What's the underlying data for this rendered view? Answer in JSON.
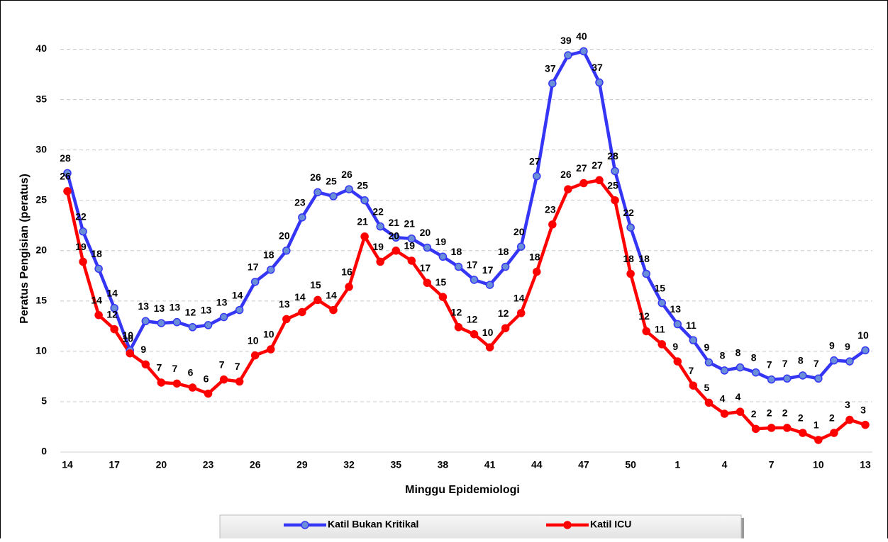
{
  "chart_data": {
    "type": "line",
    "x_label": "Minggu Epidemiologi",
    "y_label": "Peratus Pengisian (peratus)",
    "categories": [
      "14",
      null,
      null,
      "17",
      null,
      null,
      "20",
      null,
      null,
      "23",
      null,
      null,
      "26",
      null,
      null,
      "29",
      null,
      null,
      "32",
      null,
      null,
      "35",
      null,
      null,
      "38",
      null,
      null,
      "41",
      null,
      null,
      "44",
      null,
      null,
      "47",
      null,
      null,
      "50",
      null,
      null,
      "1",
      null,
      null,
      "4",
      null,
      null,
      "7",
      null,
      null,
      "10",
      null,
      null,
      "13"
    ],
    "series": [
      {
        "name": "Katil Bukan Kritikal",
        "color": "#3535f5",
        "marker_fill": "#6a8fd8",
        "values": [
          27.7,
          21.9,
          18.2,
          14.3,
          10.1,
          13.0,
          12.8,
          12.9,
          12.4,
          12.6,
          13.4,
          14.1,
          16.9,
          18.1,
          20.0,
          23.3,
          25.8,
          25.4,
          26.1,
          25.0,
          22.4,
          21.3,
          21.2,
          20.3,
          19.4,
          18.4,
          17.1,
          16.6,
          18.4,
          20.4,
          27.4,
          36.6,
          39.4,
          39.8,
          36.7,
          27.9,
          22.3,
          17.7,
          14.8,
          12.7,
          11.1,
          8.9,
          8.1,
          8.4,
          7.9,
          7.2,
          7.3,
          7.6,
          7.3,
          9.1,
          9.0,
          10.1
        ],
        "value_labels": [
          "28",
          "22",
          "18",
          "14",
          "10",
          "13",
          "13",
          "13",
          "12",
          "13",
          "13",
          "14",
          "17",
          "18",
          "20",
          "23",
          "26",
          "25",
          "26",
          "25",
          "22",
          "21",
          "21",
          "20",
          "19",
          "18",
          "17",
          "17",
          "18",
          "20",
          "27",
          "37",
          "39",
          "40",
          "37",
          "28",
          "22",
          "18",
          "15",
          "13",
          "11",
          "9",
          "8",
          "8",
          "8",
          "7",
          "7",
          "8",
          "7",
          "9",
          "9",
          "10"
        ]
      },
      {
        "name": "Katil ICU",
        "color": "#ff0000",
        "marker_fill": "#ff0000",
        "values": [
          25.9,
          18.9,
          13.6,
          12.2,
          9.8,
          8.7,
          6.9,
          6.8,
          6.4,
          5.8,
          7.2,
          7.0,
          9.6,
          10.2,
          13.2,
          13.9,
          15.1,
          14.1,
          16.4,
          21.4,
          18.9,
          20.0,
          19.0,
          16.8,
          15.4,
          12.4,
          11.7,
          10.4,
          12.3,
          13.8,
          17.9,
          22.6,
          26.1,
          26.7,
          27.0,
          25.0,
          17.7,
          12.0,
          10.7,
          9.0,
          6.6,
          4.9,
          3.8,
          4.0,
          2.3,
          2.4,
          2.4,
          1.9,
          1.2,
          1.9,
          3.2,
          2.7
        ],
        "value_labels": [
          "26",
          "19",
          "14",
          "12",
          "10",
          "9",
          "7",
          "7",
          "6",
          "6",
          "7",
          "7",
          "10",
          "10",
          "13",
          "14",
          "15",
          "14",
          "16",
          "21",
          "19",
          "20",
          "19",
          "17",
          "15",
          "12",
          "12",
          "10",
          "12",
          "14",
          "18",
          "23",
          "26",
          "27",
          "27",
          "25",
          "18",
          "12",
          "11",
          "9",
          "7",
          "5",
          "4",
          "4",
          "2",
          "2",
          "2",
          "2",
          "1",
          "2",
          "3",
          "3"
        ]
      }
    ],
    "ylim": [
      0,
      42.5
    ],
    "yticks": [
      0,
      5,
      10,
      15,
      20,
      25,
      30,
      35,
      40
    ],
    "grid": true,
    "legend": "bottom"
  }
}
